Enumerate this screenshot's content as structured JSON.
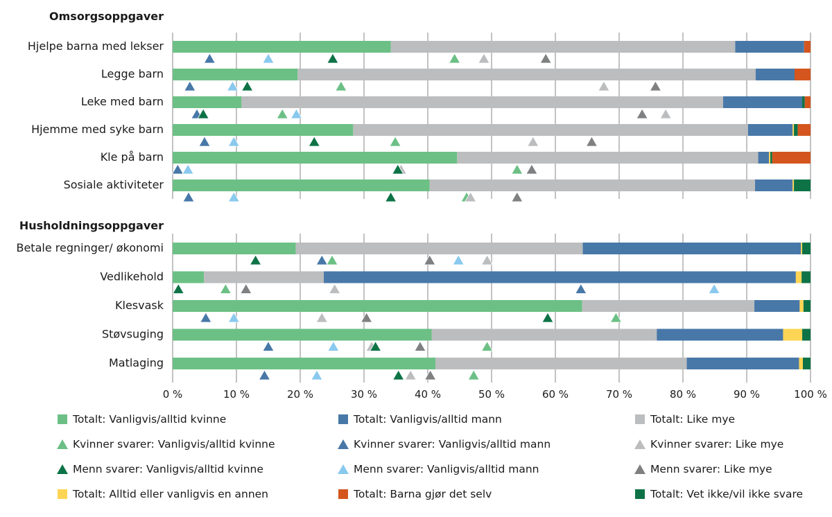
{
  "chart_data": {
    "type": "bar",
    "orientation": "horizontal-stacked",
    "xlabel": "",
    "ylabel": "",
    "xlim": [
      0,
      100
    ],
    "x_ticks": [
      "0 %",
      "10 %",
      "20 %",
      "30 %",
      "40 %",
      "50 %",
      "60 %",
      "70 %",
      "80 %",
      "90 %",
      "100 %"
    ],
    "grid": true,
    "legend_position": "bottom",
    "colors": {
      "total_woman": "#6cc085",
      "total_man": "#4878a8",
      "total_equal": "#bcbdbf",
      "total_other": "#fdd554",
      "total_children": "#d4561e",
      "total_dontknow": "#0d7346",
      "w_woman": "#6cc085",
      "w_man": "#4878a8",
      "w_equal": "#bcbdbf",
      "m_woman": "#0d7346",
      "m_man": "#89c9ee",
      "m_equal": "#7f8081"
    },
    "stack_series": [
      {
        "key": "total_woman",
        "name": "Totalt: Vanligvis/alltid kvinne"
      },
      {
        "key": "total_equal",
        "name": "Totalt: Like mye"
      },
      {
        "key": "total_man",
        "name": "Totalt: Vanligvis/alltid mann"
      },
      {
        "key": "total_other",
        "name": "Totalt: Alltid eller vanligvis en annen"
      },
      {
        "key": "total_dontknow",
        "name": "Totalt: Vet ikke/vil ikke svare"
      },
      {
        "key": "total_children",
        "name": "Totalt: Barna gjør det selv"
      }
    ],
    "marker_series": [
      {
        "key": "w_woman",
        "name": "Kvinner svarer: Vanligvis/alltid kvinne"
      },
      {
        "key": "w_man",
        "name": "Kvinner svarer: Vanligvis/alltid mann"
      },
      {
        "key": "w_equal",
        "name": "Kvinner svarer: Like mye"
      },
      {
        "key": "m_woman",
        "name": "Menn svarer: Vanligvis/alltid kvinne"
      },
      {
        "key": "m_man",
        "name": "Menn svarer: Vanligvis/alltid mann"
      },
      {
        "key": "m_equal",
        "name": "Menn svarer: Like mye"
      }
    ],
    "groups": [
      {
        "title": "Omsorgsoppgaver",
        "categories": [
          {
            "label": "Hjelpe barna med lekser",
            "stack": {
              "total_woman": 34.2,
              "total_equal": 54.0,
              "total_man": 10.8,
              "total_other": 0,
              "total_dontknow": 0,
              "total_children": 1.0
            },
            "markers": {
              "w_man": 5.8,
              "m_man": 15.0,
              "m_woman": 25.1,
              "w_woman": 44.2,
              "w_equal": 48.8,
              "m_equal": 58.5
            }
          },
          {
            "label": "Legge barn",
            "stack": {
              "total_woman": 19.6,
              "total_equal": 71.8,
              "total_man": 6.1,
              "total_other": 0,
              "total_dontknow": 0,
              "total_children": 2.5
            },
            "markers": {
              "w_man": 2.7,
              "m_man": 9.4,
              "m_woman": 11.7,
              "w_woman": 26.4,
              "w_equal": 67.6,
              "m_equal": 75.7
            }
          },
          {
            "label": "Leke med barn",
            "stack": {
              "total_woman": 10.8,
              "total_equal": 75.5,
              "total_man": 12.4,
              "total_other": 0,
              "total_dontknow": 0.4,
              "total_children": 0.9
            },
            "markers": {
              "w_man": 3.8,
              "m_woman": 4.8,
              "w_woman": 17.2,
              "m_man": 19.4,
              "m_equal": 73.6,
              "w_equal": 77.3
            }
          },
          {
            "label": "Hjemme med syke barn",
            "stack": {
              "total_woman": 28.3,
              "total_equal": 61.9,
              "total_man": 7.0,
              "total_other": 0.2,
              "total_dontknow": 0.6,
              "total_children": 2.0
            },
            "markers": {
              "w_man": 5.0,
              "m_man": 9.6,
              "m_woman": 22.2,
              "w_woman": 34.9,
              "w_equal": 56.5,
              "m_equal": 65.7
            }
          },
          {
            "label": "Kle på barn",
            "stack": {
              "total_woman": 44.6,
              "total_equal": 47.2,
              "total_man": 1.7,
              "total_other": 0.2,
              "total_dontknow": 0.3,
              "total_children": 6.0
            },
            "markers": {
              "w_man": 0.8,
              "m_man": 2.4,
              "m_woman": 35.3,
              "w_equal": 35.8,
              "w_woman": 54.0,
              "m_equal": 56.3
            }
          },
          {
            "label": "Sosiale aktiviteter",
            "stack": {
              "total_woman": 40.3,
              "total_equal": 51.0,
              "total_man": 5.9,
              "total_other": 0.2,
              "total_dontknow": 2.6,
              "total_children": 0
            },
            "markers": {
              "w_man": 2.5,
              "m_man": 9.6,
              "m_woman": 34.2,
              "w_woman": 46.1,
              "w_equal": 46.7,
              "m_equal": 54.0
            }
          }
        ]
      },
      {
        "title": "Husholdningsoppgaver",
        "categories": [
          {
            "label": "Betale regninger/ økonomi",
            "stack": {
              "total_woman": 19.3,
              "total_equal": 45.0,
              "total_man": 34.2,
              "total_other": 0.2,
              "total_dontknow": 1.3,
              "total_children": 0
            },
            "markers": {
              "m_woman": 13.0,
              "w_man": 23.4,
              "w_woman": 25.0,
              "m_equal": 40.3,
              "m_man": 44.8,
              "w_equal": 49.3
            }
          },
          {
            "label": "Vedlikehold",
            "stack": {
              "total_woman": 4.9,
              "total_equal": 18.8,
              "total_man": 74.0,
              "total_other": 0.9,
              "total_dontknow": 1.4,
              "total_children": 0
            },
            "markers": {
              "m_woman": 0.9,
              "w_woman": 8.3,
              "m_equal": 11.5,
              "w_equal": 25.4,
              "w_man": 64.0,
              "m_man": 84.9
            }
          },
          {
            "label": "Klesvask",
            "stack": {
              "total_woman": 64.2,
              "total_equal": 27.0,
              "total_man": 7.1,
              "total_other": 0.6,
              "total_dontknow": 1.1,
              "total_children": 0
            },
            "markers": {
              "w_man": 5.2,
              "m_man": 9.6,
              "w_equal": 23.4,
              "m_equal": 30.4,
              "m_woman": 58.8,
              "w_woman": 69.5
            }
          },
          {
            "label": "Støvsuging",
            "stack": {
              "total_woman": 40.6,
              "total_equal": 35.3,
              "total_man": 19.8,
              "total_other": 3.0,
              "total_dontknow": 1.3,
              "total_children": 0
            },
            "markers": {
              "w_man": 15.0,
              "m_man": 25.2,
              "w_equal": 31.2,
              "m_woman": 31.8,
              "m_equal": 38.8,
              "w_woman": 49.3
            }
          },
          {
            "label": "Matlaging",
            "stack": {
              "total_woman": 41.2,
              "total_equal": 39.4,
              "total_man": 17.6,
              "total_other": 0.6,
              "total_dontknow": 1.2,
              "total_children": 0
            },
            "markers": {
              "w_man": 14.4,
              "m_man": 22.6,
              "m_woman": 35.4,
              "w_equal": 37.3,
              "m_equal": 40.4,
              "w_woman": 47.2
            }
          }
        ]
      }
    ],
    "legend": [
      {
        "key": "total_woman",
        "shape": "square",
        "label": "Totalt: Vanligvis/alltid kvinne"
      },
      {
        "key": "total_man",
        "shape": "square",
        "label": "Totalt: Vanligvis/alltid mann"
      },
      {
        "key": "total_equal",
        "shape": "square",
        "label": "Totalt: Like mye"
      },
      {
        "key": "w_woman",
        "shape": "triangle",
        "label": "Kvinner svarer: Vanligvis/alltid kvinne"
      },
      {
        "key": "w_man",
        "shape": "triangle",
        "label": "Kvinner svarer: Vanligvis/alltid mann"
      },
      {
        "key": "w_equal",
        "shape": "triangle",
        "label": "Kvinner svarer: Like mye"
      },
      {
        "key": "m_woman",
        "shape": "triangle",
        "label": "Menn svarer: Vanligvis/alltid kvinne"
      },
      {
        "key": "m_man",
        "shape": "triangle",
        "label": "Menn svarer: Vanligvis/alltid mann"
      },
      {
        "key": "m_equal",
        "shape": "triangle",
        "label": "Menn svarer: Like mye"
      },
      {
        "key": "total_other",
        "shape": "square",
        "label": "Totalt: Alltid eller vanligvis en annen"
      },
      {
        "key": "total_children",
        "shape": "square",
        "label": "Totalt: Barna gjør det selv"
      },
      {
        "key": "total_dontknow",
        "shape": "square",
        "label": "Totalt: Vet ikke/vil ikke svare"
      }
    ]
  }
}
